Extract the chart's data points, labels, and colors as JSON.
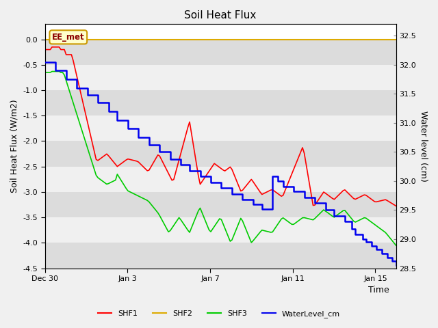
{
  "title": "Soil Heat Flux",
  "ylabel_left": "Soil Heat Flux (W/m2)",
  "ylabel_right": "Water level (cm)",
  "xlabel": "Time",
  "ylim_left": [
    -4.5,
    0.3
  ],
  "ylim_right": [
    28.5,
    32.7
  ],
  "bg_color": "#f0f0f0",
  "plot_bg_color": "#ffffff",
  "band_color_dark": "#dcdcdc",
  "band_color_light": "#f0f0f0",
  "annotation_label": "EE_met",
  "annotation_bg": "#ffffcc",
  "annotation_border": "#cc9900",
  "shf2_color": "#ddaa00",
  "shf1_color": "#ff0000",
  "shf3_color": "#00cc00",
  "water_color": "#0000ee",
  "xtick_labels": [
    "Dec 30",
    "Jan 3",
    "Jan 7",
    "Jan 11",
    "Jan 15"
  ],
  "xtick_positions": [
    0,
    4,
    8,
    12,
    16
  ],
  "yticks_left": [
    0.0,
    -0.5,
    -1.0,
    -1.5,
    -2.0,
    -2.5,
    -3.0,
    -3.5,
    -4.0,
    -4.5
  ],
  "ytick_labels_left": [
    "0.0",
    "-0.5",
    "-1.0",
    "-1.5",
    "-2.0",
    "-2.5",
    "-3.0",
    "-3.5",
    "-4.0",
    "-4.5"
  ],
  "yticks_right": [
    32.5,
    32.0,
    31.5,
    31.0,
    30.5,
    30.0,
    29.5,
    29.0,
    28.5
  ]
}
